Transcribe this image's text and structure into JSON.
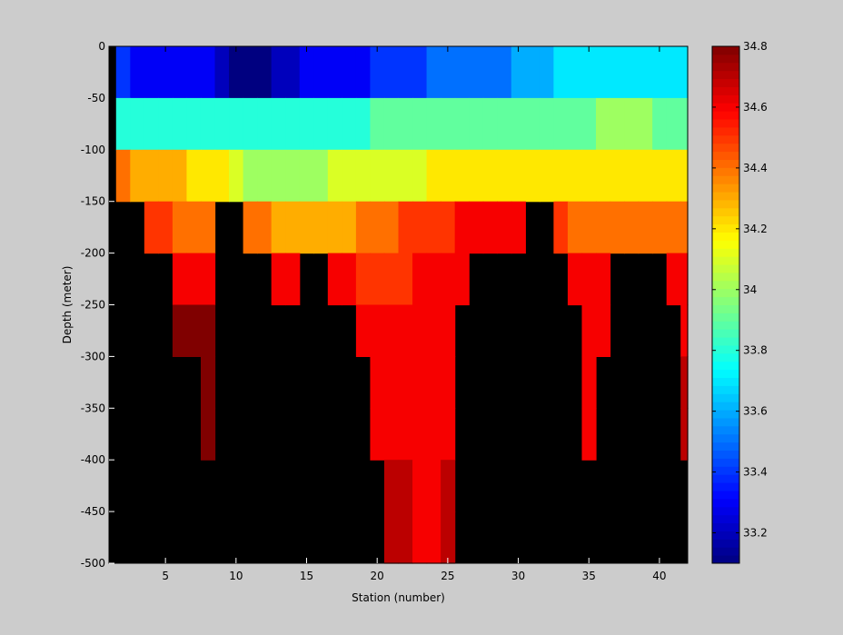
{
  "chart_data": {
    "type": "heatmap",
    "title": "",
    "xlabel": "Station (number)",
    "ylabel": "Depth (meter)",
    "xlim": [
      1,
      42
    ],
    "ylim": [
      -500,
      0
    ],
    "x_ticks": [
      5,
      10,
      15,
      20,
      25,
      30,
      35,
      40
    ],
    "y_ticks": [
      0,
      -50,
      -100,
      -150,
      -200,
      -250,
      -300,
      -350,
      -400,
      -450,
      -500
    ],
    "colorbar": {
      "range": [
        33.1,
        34.8
      ],
      "ticks": [
        "33.2",
        "33.4",
        "33.6",
        "33.8",
        "34",
        "34.2",
        "34.4",
        "34.6",
        "34.8"
      ],
      "colormap": "jet"
    },
    "missing_color": "#000000",
    "stations": [
      2,
      3,
      4,
      5,
      6,
      7,
      8,
      9,
      10,
      11,
      12,
      13,
      14,
      15,
      16,
      17,
      18,
      19,
      20,
      21,
      22,
      23,
      24,
      25,
      26,
      27,
      28,
      29,
      30,
      31,
      32,
      33,
      34,
      35,
      36,
      37,
      38,
      39,
      40,
      41,
      42
    ],
    "depths": [
      -25,
      -75,
      -125,
      -175,
      -225,
      -275,
      -325,
      -375,
      -425,
      -475
    ],
    "salinity": [
      [
        33.4,
        33.3,
        33.3,
        33.3,
        33.3,
        33.3,
        33.3,
        33.2,
        33.1,
        33.1,
        33.1,
        33.2,
        33.2,
        33.3,
        33.3,
        33.3,
        33.3,
        33.3,
        33.4,
        33.4,
        33.4,
        33.4,
        33.5,
        33.5,
        33.5,
        33.5,
        33.5,
        33.5,
        33.6,
        33.6,
        33.6,
        33.7,
        33.7,
        33.7,
        33.7,
        33.7,
        33.7,
        33.7,
        33.7,
        33.7,
        33.7
      ],
      [
        33.8,
        33.8,
        33.8,
        33.8,
        33.8,
        33.8,
        33.8,
        33.8,
        33.8,
        33.8,
        33.8,
        33.8,
        33.8,
        33.8,
        33.8,
        33.8,
        33.8,
        33.8,
        33.9,
        33.9,
        33.9,
        33.9,
        33.9,
        33.9,
        33.9,
        33.9,
        33.9,
        33.9,
        33.9,
        33.9,
        33.9,
        33.9,
        33.9,
        33.9,
        34.0,
        34.0,
        34.0,
        34.0,
        33.9,
        33.9,
        33.9
      ],
      [
        34.4,
        34.3,
        34.3,
        34.3,
        34.3,
        34.2,
        34.2,
        34.2,
        34.1,
        34.0,
        34.0,
        34.0,
        34.0,
        34.0,
        34.0,
        34.1,
        34.1,
        34.1,
        34.1,
        34.1,
        34.1,
        34.1,
        34.2,
        34.2,
        34.2,
        34.2,
        34.2,
        34.2,
        34.2,
        34.2,
        34.2,
        34.2,
        34.2,
        34.2,
        34.2,
        34.2,
        34.2,
        34.2,
        34.2,
        34.2,
        34.2
      ],
      [
        null,
        null,
        34.5,
        34.5,
        34.4,
        34.4,
        34.4,
        null,
        null,
        34.4,
        34.4,
        34.3,
        34.3,
        34.3,
        34.3,
        34.3,
        34.3,
        34.4,
        34.4,
        34.4,
        34.5,
        34.5,
        34.5,
        34.5,
        34.6,
        34.6,
        34.6,
        34.6,
        34.6,
        null,
        null,
        34.5,
        34.4,
        34.4,
        34.4,
        34.4,
        34.4,
        34.4,
        34.4,
        34.4,
        34.4
      ],
      [
        null,
        null,
        null,
        null,
        34.6,
        34.6,
        34.6,
        null,
        null,
        null,
        null,
        34.6,
        34.6,
        null,
        null,
        34.6,
        34.6,
        34.5,
        34.5,
        34.5,
        34.5,
        34.6,
        34.6,
        34.6,
        34.6,
        null,
        null,
        null,
        null,
        null,
        null,
        null,
        34.6,
        34.6,
        34.6,
        null,
        null,
        null,
        null,
        34.6,
        34.6
      ],
      [
        null,
        null,
        null,
        null,
        34.8,
        34.8,
        34.8,
        null,
        null,
        null,
        null,
        null,
        null,
        null,
        null,
        null,
        null,
        34.6,
        34.6,
        34.6,
        34.6,
        34.6,
        34.6,
        34.6,
        null,
        null,
        null,
        null,
        null,
        null,
        null,
        null,
        null,
        34.6,
        34.6,
        null,
        null,
        null,
        null,
        null,
        34.6
      ],
      [
        null,
        null,
        null,
        null,
        null,
        null,
        34.8,
        null,
        null,
        null,
        null,
        null,
        null,
        null,
        null,
        null,
        null,
        null,
        34.6,
        34.6,
        34.6,
        34.6,
        34.6,
        34.6,
        null,
        null,
        null,
        null,
        null,
        null,
        null,
        null,
        null,
        34.6,
        null,
        null,
        null,
        null,
        null,
        null,
        34.7
      ],
      [
        null,
        null,
        null,
        null,
        null,
        null,
        34.8,
        null,
        null,
        null,
        null,
        null,
        null,
        null,
        null,
        null,
        null,
        null,
        34.6,
        34.6,
        34.6,
        34.6,
        34.6,
        34.6,
        null,
        null,
        null,
        null,
        null,
        null,
        null,
        null,
        null,
        34.6,
        null,
        null,
        null,
        null,
        null,
        null,
        34.7
      ],
      [
        null,
        null,
        null,
        null,
        null,
        null,
        null,
        null,
        null,
        null,
        null,
        null,
        null,
        null,
        null,
        null,
        null,
        null,
        null,
        34.7,
        34.7,
        34.6,
        34.6,
        34.7,
        null,
        null,
        null,
        null,
        null,
        null,
        null,
        null,
        null,
        null,
        null,
        null,
        null,
        null,
        null,
        null,
        null
      ],
      [
        null,
        null,
        null,
        null,
        null,
        null,
        null,
        null,
        null,
        null,
        null,
        null,
        null,
        null,
        null,
        null,
        null,
        null,
        null,
        34.7,
        34.7,
        34.6,
        34.6,
        34.7,
        null,
        null,
        null,
        null,
        null,
        null,
        null,
        null,
        null,
        null,
        null,
        null,
        null,
        null,
        null,
        null,
        null
      ]
    ]
  }
}
